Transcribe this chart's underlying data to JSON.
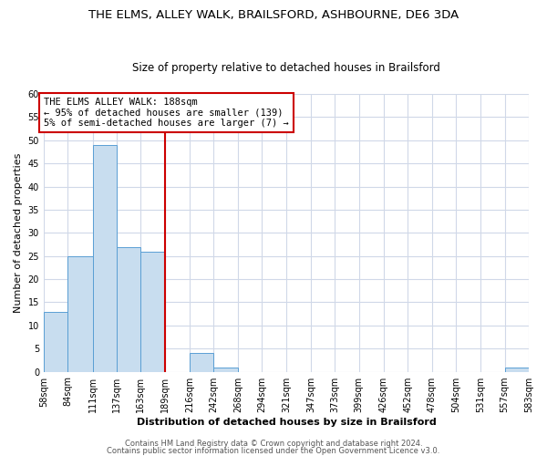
{
  "title": "THE ELMS, ALLEY WALK, BRAILSFORD, ASHBOURNE, DE6 3DA",
  "subtitle": "Size of property relative to detached houses in Brailsford",
  "xlabel": "Distribution of detached houses by size in Brailsford",
  "ylabel": "Number of detached properties",
  "bin_edges": [
    58,
    84,
    111,
    137,
    163,
    189,
    216,
    242,
    268,
    294,
    321,
    347,
    373,
    399,
    426,
    452,
    478,
    504,
    531,
    557,
    583
  ],
  "bin_labels": [
    "58sqm",
    "84sqm",
    "111sqm",
    "137sqm",
    "163sqm",
    "189sqm",
    "216sqm",
    "242sqm",
    "268sqm",
    "294sqm",
    "321sqm",
    "347sqm",
    "373sqm",
    "399sqm",
    "426sqm",
    "452sqm",
    "478sqm",
    "504sqm",
    "531sqm",
    "557sqm",
    "583sqm"
  ],
  "counts": [
    13,
    25,
    49,
    27,
    26,
    0,
    4,
    1,
    0,
    0,
    0,
    0,
    0,
    0,
    0,
    0,
    0,
    0,
    0,
    1
  ],
  "bar_color": "#c8ddef",
  "bar_edge_color": "#5a9fd4",
  "vline_x": 189,
  "vline_color": "#cc0000",
  "annotation_title": "THE ELMS ALLEY WALK: 188sqm",
  "annotation_line1": "← 95% of detached houses are smaller (139)",
  "annotation_line2": "5% of semi-detached houses are larger (7) →",
  "annotation_box_color": "#cc0000",
  "ylim": [
    0,
    60
  ],
  "yticks": [
    0,
    5,
    10,
    15,
    20,
    25,
    30,
    35,
    40,
    45,
    50,
    55,
    60
  ],
  "footer1": "Contains HM Land Registry data © Crown copyright and database right 2024.",
  "footer2": "Contains public sector information licensed under the Open Government Licence v3.0.",
  "bg_color": "#ffffff",
  "plot_bg_color": "#ffffff",
  "grid_color": "#d0d8e8",
  "title_fontsize": 9.5,
  "subtitle_fontsize": 8.5,
  "axis_label_fontsize": 8,
  "tick_fontsize": 7,
  "annotation_fontsize": 7.5,
  "footer_fontsize": 6
}
